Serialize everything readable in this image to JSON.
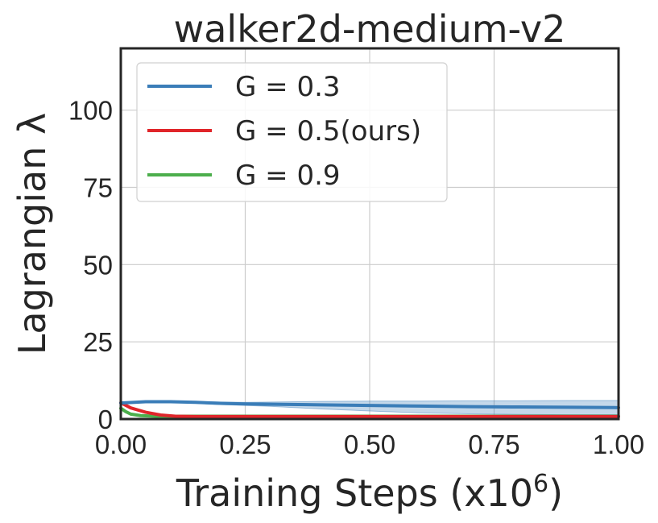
{
  "chart_data": {
    "type": "line",
    "title": "walker2d-medium-v2",
    "xlabel": "Training Steps (x10",
    "xlabel_superscript": "6",
    "xlabel_suffix": ")",
    "ylabel": "Lagrangian λ",
    "xlim": [
      0.0,
      1.0
    ],
    "ylim": [
      0,
      120
    ],
    "x_ticks": [
      0.0,
      0.25,
      0.5,
      0.75,
      1.0
    ],
    "x_tick_labels": [
      "0.00",
      "0.25",
      "0.50",
      "0.75",
      "1.00"
    ],
    "y_ticks": [
      0,
      25,
      50,
      75,
      100
    ],
    "y_tick_labels": [
      "0",
      "25",
      "50",
      "75",
      "100"
    ],
    "grid": true,
    "legend_position": "top-left",
    "series": [
      {
        "name": "G = 0.3",
        "color": "#3a7db8",
        "x": [
          0.0,
          0.05,
          0.1,
          0.15,
          0.2,
          0.25,
          0.3,
          0.4,
          0.5,
          0.6,
          0.7,
          0.8,
          0.9,
          1.0
        ],
        "values": [
          5.2,
          5.6,
          5.6,
          5.4,
          5.1,
          4.9,
          4.8,
          4.6,
          4.4,
          4.2,
          4.0,
          3.9,
          3.8,
          3.7
        ],
        "band_lower": [
          5.0,
          5.4,
          5.4,
          5.1,
          4.7,
          4.4,
          4.1,
          3.3,
          2.6,
          2.0,
          1.7,
          1.5,
          1.4,
          1.4
        ],
        "band_upper": [
          5.4,
          5.8,
          5.8,
          5.7,
          5.5,
          5.4,
          5.5,
          5.7,
          5.8,
          5.8,
          5.9,
          5.9,
          6.0,
          6.0
        ]
      },
      {
        "name": "G = 0.5(ours)",
        "color": "#e0252a",
        "x": [
          0.0,
          0.02,
          0.05,
          0.08,
          0.11,
          0.15,
          0.2,
          0.3,
          0.5,
          0.75,
          1.0
        ],
        "values": [
          5.3,
          3.6,
          2.2,
          1.3,
          0.9,
          0.8,
          0.8,
          0.8,
          0.8,
          0.8,
          0.8
        ]
      },
      {
        "name": "G = 0.9",
        "color": "#4cae4c",
        "x": [
          0.0,
          0.01,
          0.02,
          0.04,
          0.07,
          0.1,
          0.2,
          0.5,
          0.75,
          1.0
        ],
        "values": [
          3.5,
          2.4,
          1.6,
          1.1,
          0.9,
          0.9,
          0.9,
          0.9,
          0.9,
          0.9
        ]
      }
    ]
  }
}
